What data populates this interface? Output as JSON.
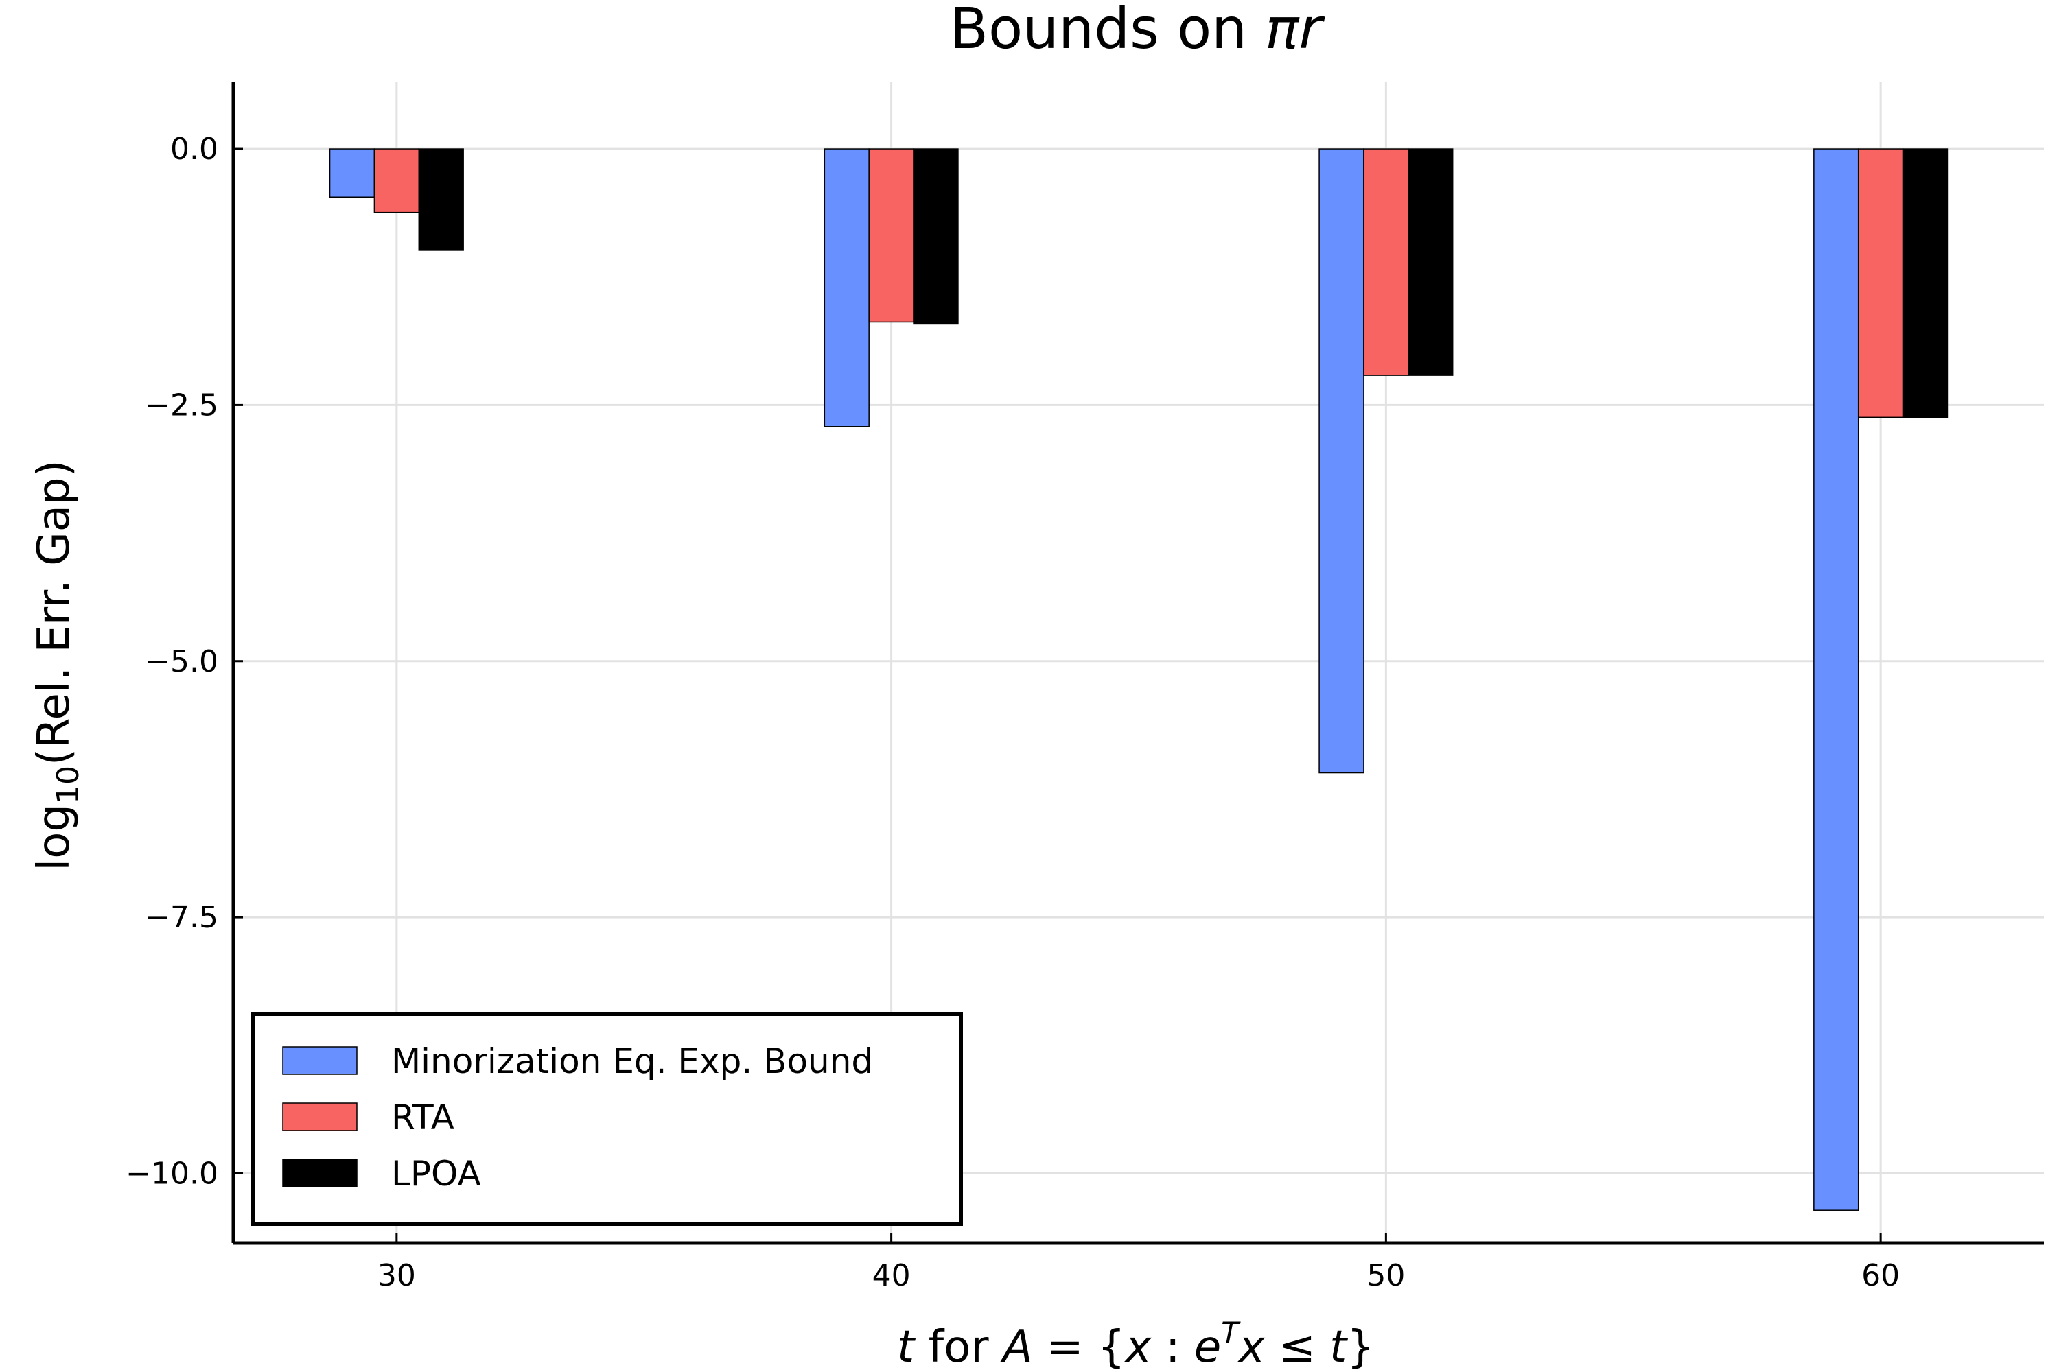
{
  "chart_data": {
    "type": "bar",
    "title": {
      "prefix": "Bounds on ",
      "math": "πr"
    },
    "xlabel": {
      "t1": "t",
      "t2": " for ",
      "t3": "A",
      "t4": " = {",
      "t5": "x",
      "t6": " : ",
      "t7": "e",
      "t8": "T",
      "t9": "x",
      "t10": " ≤ ",
      "t11": "t",
      "t12": "}"
    },
    "ylabel": {
      "pre": "log",
      "sub": "10",
      "post": "(Rel. Err. Gap)"
    },
    "categories": [
      30,
      40,
      50,
      60
    ],
    "x_ticks": [
      "30",
      "40",
      "50",
      "60"
    ],
    "xlim": [
      26.7,
      63.3
    ],
    "ylim": [
      -10.68,
      0.65
    ],
    "y_ticks": [
      {
        "value": 0.0,
        "label": "0.0"
      },
      {
        "value": -2.5,
        "label": "−2.5"
      },
      {
        "value": -5.0,
        "label": "−5.0"
      },
      {
        "value": -7.5,
        "label": "−7.5"
      },
      {
        "value": -10.0,
        "label": "−10.0"
      }
    ],
    "grid": true,
    "legend_position": "bottom-left",
    "series": [
      {
        "name": "Minorization Eq. Exp. Bound",
        "color": "#6890ff",
        "values": [
          -0.47,
          -2.71,
          -6.09,
          -10.36
        ]
      },
      {
        "name": "RTA",
        "color": "#f86462",
        "values": [
          -0.62,
          -1.69,
          -2.21,
          -2.62
        ]
      },
      {
        "name": "LPOA",
        "color": "#000000",
        "values": [
          -0.99,
          -1.71,
          -2.21,
          -2.62
        ]
      }
    ]
  }
}
